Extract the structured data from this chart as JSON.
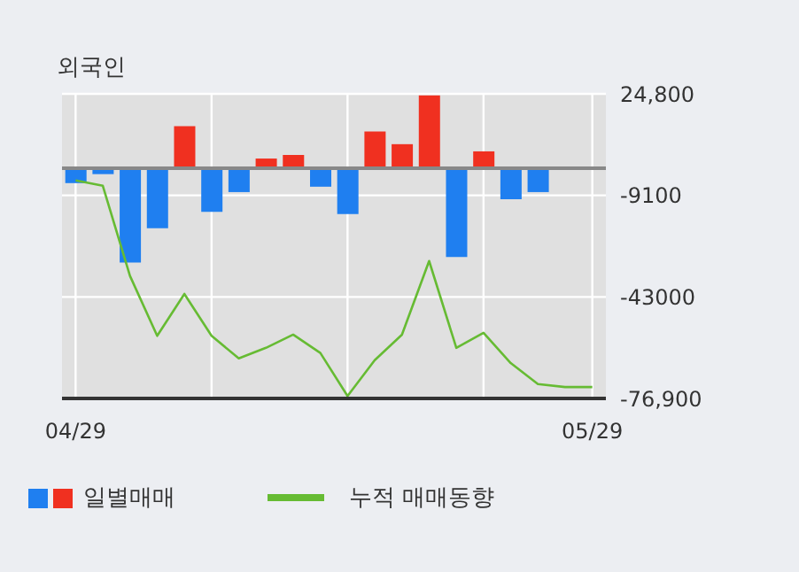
{
  "chart_data": {
    "type": "bar",
    "title": "외국인",
    "categories": [
      "04/29",
      null,
      null,
      null,
      null,
      null,
      null,
      null,
      null,
      null,
      null,
      null,
      null,
      null,
      null,
      null,
      null,
      null,
      null,
      "05/29"
    ],
    "series": [
      {
        "name": "일별매매",
        "colors": [
          "#1f7ff0",
          "#1f7ff0",
          "#1f7ff0",
          "#1f7ff0",
          "#f03020",
          "#1f7ff0",
          "#1f7ff0",
          "#f03020",
          "#f03020",
          "#1f7ff0",
          "#1f7ff0",
          "#f03020",
          "#f03020",
          "#f03020",
          "#1f7ff0",
          "#f03020",
          "#1f7ff0",
          "#1f7ff0",
          "#1f7ff0",
          "#1f7ff0"
        ],
        "values": [
          -5000,
          -2000,
          -31500,
          -20100,
          14000,
          -14600,
          -8000,
          3200,
          4400,
          -6200,
          -15300,
          12200,
          8000,
          24300,
          -29700,
          5600,
          -10400,
          -8000,
          null,
          null
        ]
      },
      {
        "type": "line",
        "name": "누적 매매동향",
        "color": "#66bb33",
        "values": [
          -4100,
          -5900,
          -36000,
          -56000,
          -42000,
          -56000,
          -63500,
          -60000,
          -55600,
          -61700,
          -76100,
          -64100,
          -55600,
          -31000,
          -60000,
          -55000,
          -65100,
          -72100,
          -73100,
          -73100
        ]
      }
    ],
    "ylim": [
      -76900,
      24800
    ],
    "yticks": [
      {
        "value": 24800,
        "label": "24,800"
      },
      {
        "value": -9100,
        "label": "-9100"
      },
      {
        "value": -43000,
        "label": "-43000"
      },
      {
        "value": -76900,
        "label": "-76,900"
      }
    ],
    "ref_lines": [
      {
        "axis": "y",
        "value": 0,
        "color": "#888888"
      }
    ],
    "grid": true,
    "legend": "bottom"
  }
}
